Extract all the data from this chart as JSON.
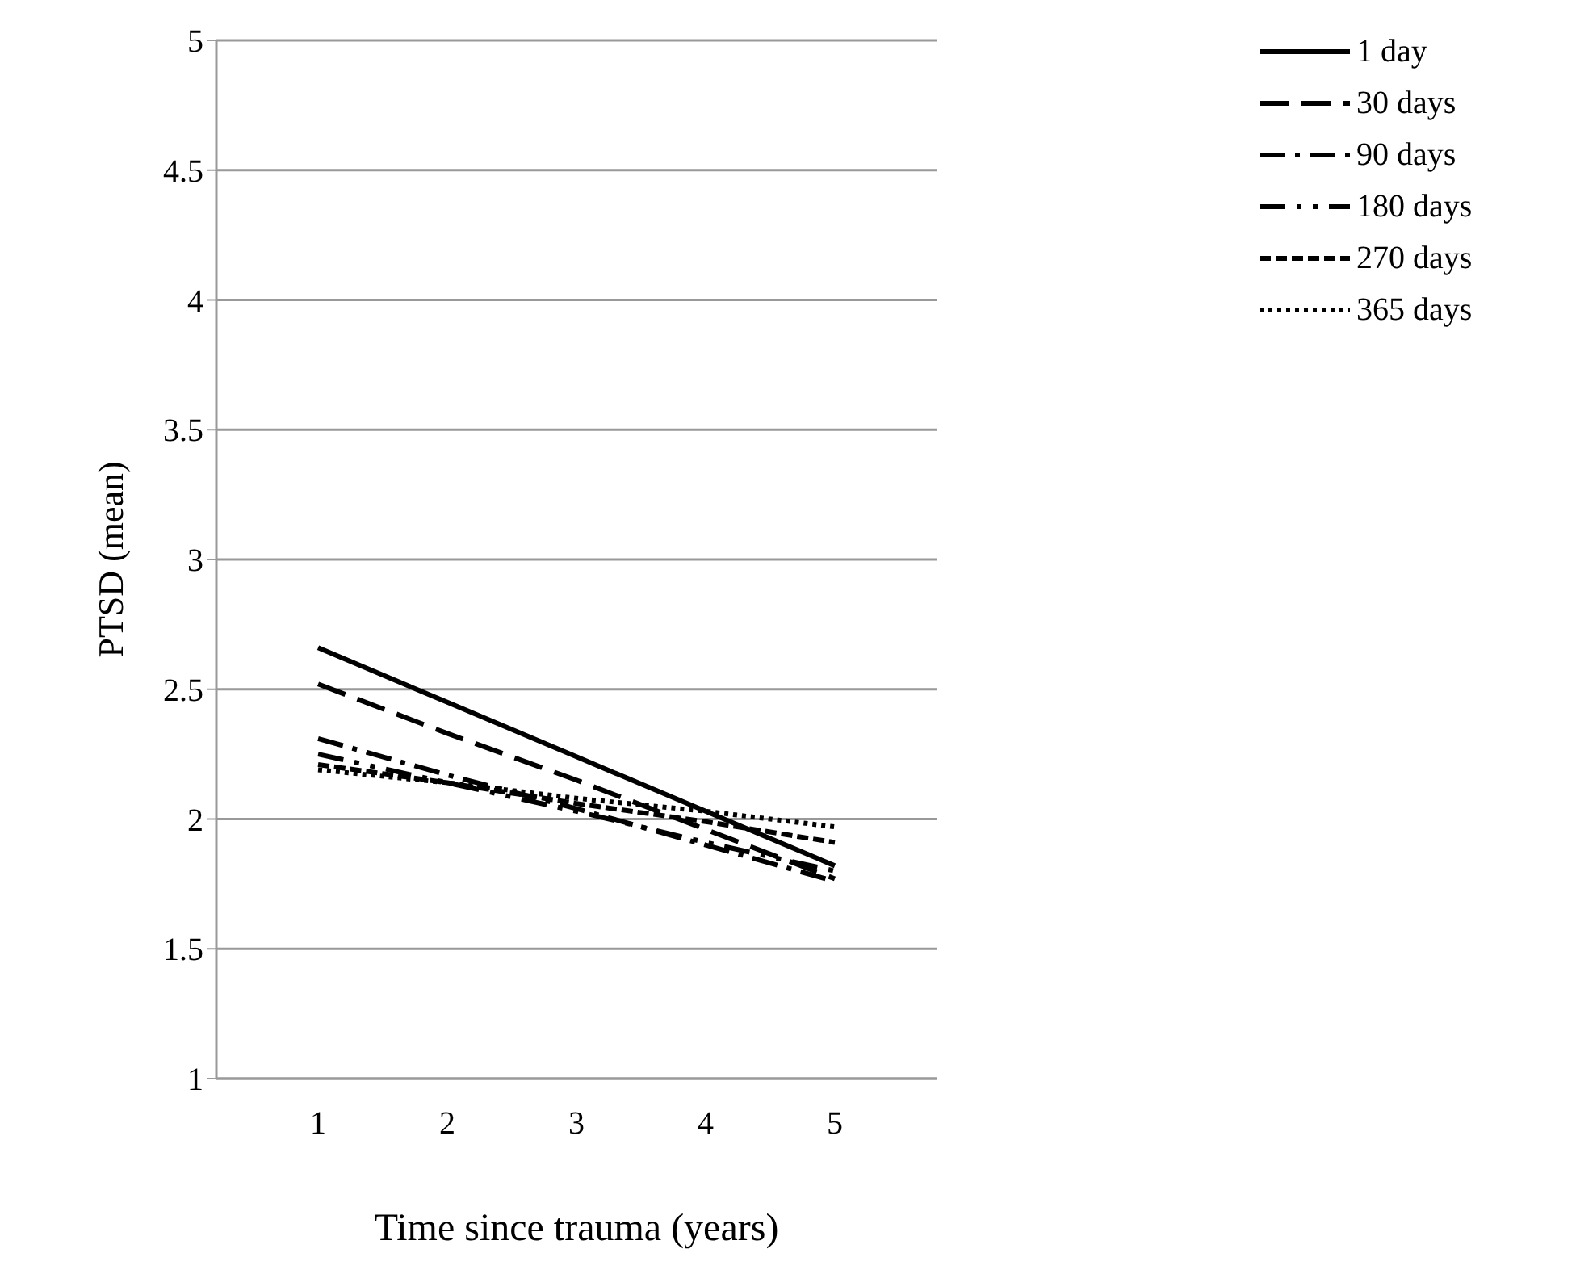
{
  "chart_data": {
    "type": "line",
    "xlabel": "Time since trauma (years)",
    "ylabel": "PTSD (mean)",
    "categories": [
      "1",
      "2",
      "3",
      "4",
      "5"
    ],
    "series": [
      {
        "name": "1 day",
        "color": "#000000",
        "line_style": "solid",
        "values": [
          2.66,
          2.45,
          2.24,
          2.03,
          1.82
        ]
      },
      {
        "name": "30 days",
        "color": "#000000",
        "line_style": "long_dash",
        "values": [
          2.52,
          2.33,
          2.15,
          1.96,
          1.77
        ]
      },
      {
        "name": "90 days",
        "color": "#000000",
        "line_style": "dash_dot",
        "values": [
          2.31,
          2.17,
          2.04,
          1.9,
          1.76
        ]
      },
      {
        "name": "180 days",
        "color": "#000000",
        "line_style": "long_dash_dot_dot",
        "values": [
          2.25,
          2.14,
          2.03,
          1.91,
          1.8
        ]
      },
      {
        "name": "270 days",
        "color": "#000000",
        "line_style": "dashed",
        "values": [
          2.21,
          2.14,
          2.06,
          1.99,
          1.91
        ]
      },
      {
        "name": "365 days",
        "color": "#000000",
        "line_style": "dotted",
        "values": [
          2.19,
          2.14,
          2.08,
          2.03,
          1.97
        ]
      }
    ],
    "ylim": [
      1,
      5
    ],
    "yticks": [
      1,
      1.5,
      2,
      2.5,
      3,
      3.5,
      4,
      4.5,
      5
    ],
    "grid": "y",
    "legend": "right",
    "marker": "none"
  }
}
